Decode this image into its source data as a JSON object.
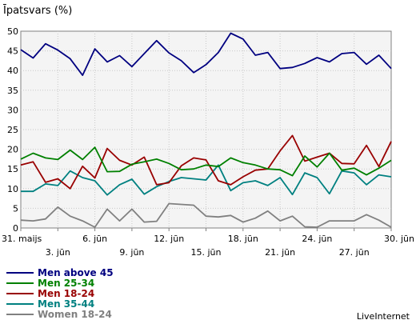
{
  "chart_data": {
    "type": "line",
    "title": "Īpatsvars (%)",
    "ylim": [
      0,
      50
    ],
    "yticks": [
      0,
      5,
      10,
      15,
      20,
      25,
      30,
      35,
      40,
      45,
      50
    ],
    "grid": true,
    "x_count": 31,
    "xticks_upper": [
      {
        "index": 0,
        "label": "31. maijs"
      },
      {
        "index": 3,
        "label": "3. jūn"
      },
      {
        "index": 6,
        "label": "6. jūn"
      },
      {
        "index": 9,
        "label": "9. jūn"
      },
      {
        "index": 12,
        "label": "12. jūn"
      },
      {
        "index": 15,
        "label": "15. jūn"
      },
      {
        "index": 18,
        "label": "18. jūn"
      },
      {
        "index": 21,
        "label": "21. jūn"
      },
      {
        "index": 24,
        "label": "24. jūn"
      },
      {
        "index": 27,
        "label": "27. jūn"
      },
      {
        "index": 30,
        "label": "30. jūn"
      }
    ],
    "series": [
      {
        "name": "Men above 45",
        "color": "#000080",
        "values": [
          45.3,
          43.2,
          46.8,
          45.2,
          43.0,
          38.8,
          45.5,
          42.2,
          43.8,
          41.0,
          44.3,
          47.6,
          44.5,
          42.5,
          39.5,
          41.5,
          44.6,
          49.5,
          48.0,
          43.9,
          44.6,
          40.5,
          40.8,
          41.8,
          43.3,
          42.2,
          44.3,
          44.6,
          41.6,
          43.9,
          40.5
        ]
      },
      {
        "name": "Men 25-34",
        "color": "#008000",
        "values": [
          17.5,
          19.0,
          17.8,
          17.4,
          19.8,
          17.4,
          20.5,
          14.3,
          14.4,
          16.2,
          16.8,
          17.5,
          16.4,
          14.8,
          15.0,
          16.0,
          15.6,
          17.8,
          16.6,
          16.0,
          15.0,
          14.8,
          13.3,
          18.3,
          15.5,
          19.0,
          14.7,
          15.2,
          13.5,
          15.2,
          17.2
        ]
      },
      {
        "name": "Men 18-24",
        "color": "#990000",
        "values": [
          16.0,
          16.8,
          11.6,
          12.5,
          10.0,
          15.7,
          12.7,
          20.2,
          17.2,
          16.0,
          18.0,
          11.0,
          11.5,
          15.8,
          17.8,
          17.3,
          12.0,
          11.0,
          13.0,
          14.7,
          15.0,
          19.6,
          23.5,
          17.0,
          18.0,
          19.0,
          16.4,
          16.3,
          21.0,
          15.6,
          22.0
        ]
      },
      {
        "name": "Men 35-44",
        "color": "#008080",
        "values": [
          9.3,
          9.3,
          11.2,
          10.8,
          14.5,
          12.8,
          12.0,
          8.4,
          11.0,
          12.4,
          8.6,
          10.5,
          11.8,
          12.8,
          12.5,
          12.2,
          16.0,
          9.5,
          11.5,
          12.0,
          10.8,
          12.8,
          8.5,
          14.0,
          12.8,
          8.7,
          14.5,
          14.0,
          11.0,
          13.5,
          13.0
        ]
      },
      {
        "name": "Women 18-24",
        "color": "#808080",
        "values": [
          2.0,
          1.8,
          2.3,
          5.3,
          3.0,
          1.8,
          0.2,
          4.8,
          1.8,
          4.8,
          1.5,
          1.7,
          6.2,
          6.0,
          5.8,
          3.0,
          2.8,
          3.2,
          1.5,
          2.5,
          4.3,
          1.8,
          3.0,
          0.3,
          0.2,
          1.8,
          1.8,
          1.8,
          3.4,
          2.0,
          0.2
        ]
      }
    ]
  },
  "credit": "LiveInternet"
}
